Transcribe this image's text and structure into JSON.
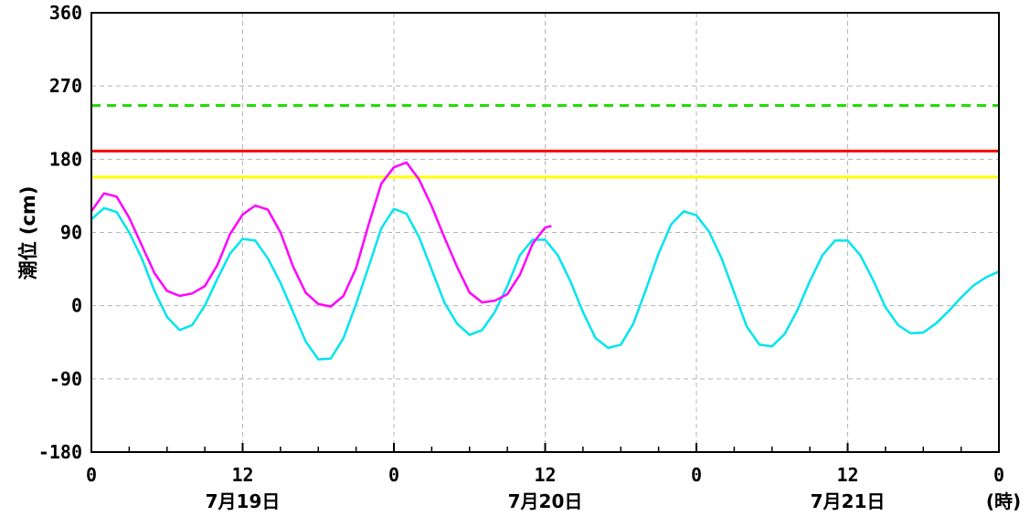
{
  "chart_data": {
    "type": "line",
    "ylabel": "潮位 (cm)",
    "xlabel_unit": "(時)",
    "ylim": [
      -180,
      360
    ],
    "xlim_hours": [
      0,
      72
    ],
    "y_ticks": [
      360,
      270,
      180,
      90,
      0,
      -90,
      -180
    ],
    "y_tick_labels": [
      "360",
      "270",
      "180",
      "90",
      "0",
      "-90",
      "-180"
    ],
    "x_ticks_hours": [
      0,
      12,
      24,
      36,
      48,
      60,
      72
    ],
    "x_tick_labels": [
      "0",
      "12",
      "0",
      "12",
      "0",
      "12",
      "0"
    ],
    "x_date_labels": [
      {
        "hour": 12,
        "label": "7月19日"
      },
      {
        "hour": 36,
        "label": "7月20日"
      },
      {
        "hour": 60,
        "label": "7月21日"
      }
    ],
    "grid": true,
    "reference_lines": [
      {
        "value": 246,
        "color": "#22dd00",
        "style": "dashed"
      },
      {
        "value": 190,
        "color": "#ff0000",
        "style": "solid"
      },
      {
        "value": 158,
        "color": "#ffff00",
        "style": "solid"
      }
    ],
    "series": [
      {
        "color": "#00e5ee",
        "x": [
          0,
          1,
          2,
          3,
          4,
          5,
          6,
          7,
          8,
          9,
          10,
          11,
          12,
          13,
          14,
          15,
          16,
          17,
          18,
          19,
          20,
          21,
          22,
          23,
          24,
          25,
          26,
          27,
          28,
          29,
          30,
          31,
          32,
          33,
          34,
          35,
          36,
          37,
          38,
          39,
          40,
          41,
          42,
          43,
          44,
          45,
          46,
          47,
          48,
          49,
          50,
          51,
          52,
          53,
          54,
          55,
          56,
          57,
          58,
          59,
          60,
          61,
          62,
          63,
          64,
          65,
          66,
          67,
          68,
          69,
          70,
          71,
          72
        ],
        "values": [
          106,
          120,
          115,
          90,
          58,
          18,
          -14,
          -30,
          -24,
          0,
          33,
          64,
          82,
          80,
          58,
          28,
          -8,
          -44,
          -66,
          -65,
          -40,
          2,
          48,
          95,
          119,
          113,
          84,
          44,
          4,
          -22,
          -36,
          -30,
          -8,
          24,
          62,
          81,
          81,
          62,
          30,
          -8,
          -40,
          -52,
          -48,
          -22,
          20,
          64,
          100,
          116,
          111,
          91,
          58,
          16,
          -26,
          -48,
          -50,
          -35,
          -6,
          30,
          62,
          80,
          80,
          62,
          32,
          -2,
          -24,
          -34,
          -33,
          -22,
          -7,
          10,
          25,
          35,
          42
        ]
      },
      {
        "color": "#ff00ff",
        "x": [
          0,
          1,
          2,
          3,
          4,
          5,
          6,
          7,
          8,
          9,
          10,
          11,
          12,
          13,
          14,
          15,
          16,
          17,
          18,
          19,
          20,
          21,
          22,
          23,
          24,
          25,
          26,
          27,
          28,
          29,
          30,
          31,
          32,
          33,
          34,
          35,
          36,
          36.5
        ],
        "values": [
          116,
          138,
          134,
          108,
          74,
          40,
          18,
          12,
          15,
          24,
          50,
          88,
          112,
          123,
          118,
          90,
          48,
          16,
          2,
          -1,
          12,
          46,
          100,
          150,
          170,
          176,
          155,
          122,
          84,
          48,
          16,
          4,
          6,
          14,
          38,
          76,
          96,
          98
        ]
      }
    ]
  }
}
